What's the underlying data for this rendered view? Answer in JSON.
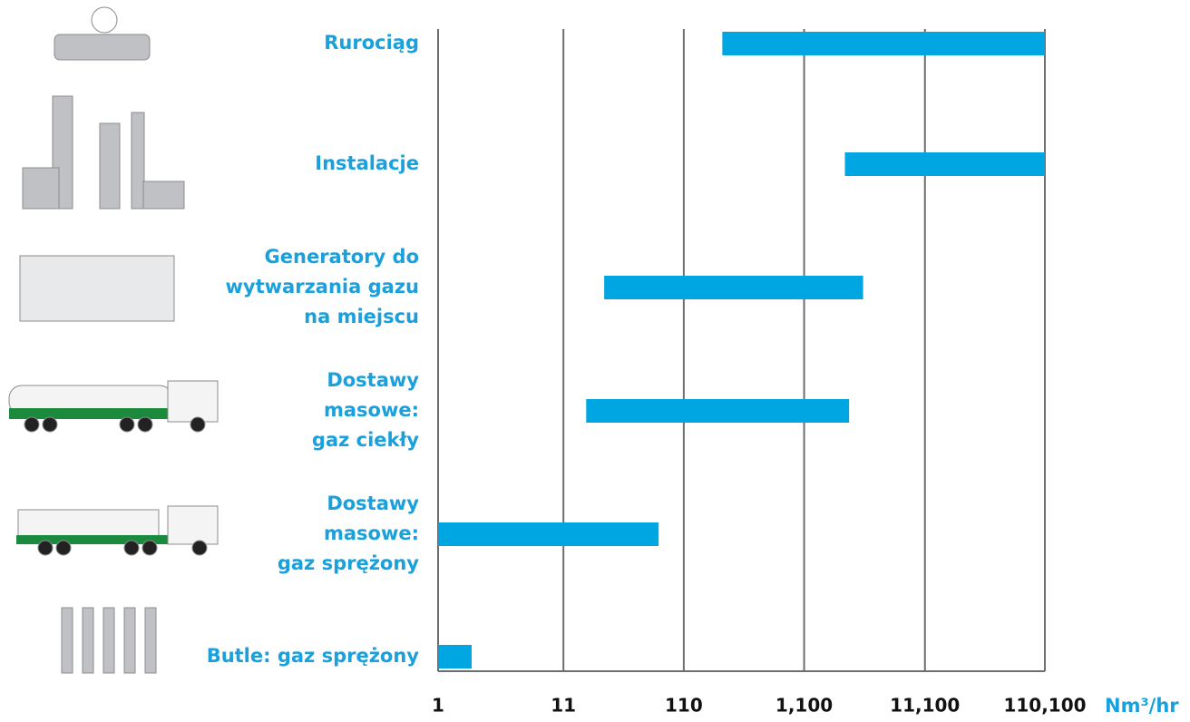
{
  "chart_data": {
    "type": "range-bar",
    "categories": [
      [
        "Rurociąg"
      ],
      [
        "Instalacje"
      ],
      [
        "Generatory do",
        "wytwarzania gazu",
        "na miejscu"
      ],
      [
        "Dostawy",
        "masowe:",
        "gaz ciekły"
      ],
      [
        "Dostawy",
        "masowe:",
        "gaz sprężony"
      ],
      [
        "Butle: gaz sprężony"
      ]
    ],
    "ranges": [
      [
        230,
        110100
      ],
      [
        2400,
        110100
      ],
      [
        24,
        3400
      ],
      [
        17,
        2600
      ],
      [
        1,
        68
      ],
      [
        1,
        1.9
      ]
    ],
    "color": "#00a6e2",
    "log_x": true,
    "xlim": [
      1,
      110100
    ],
    "xticks": [
      1,
      11,
      110,
      {
        "value": 1100,
        "label": "1,100"
      },
      {
        "value": 11100,
        "label": "11,100"
      },
      {
        "value": 110100,
        "label": "110,100"
      }
    ],
    "x_label": "Nm³/hr",
    "grid": true
  }
}
